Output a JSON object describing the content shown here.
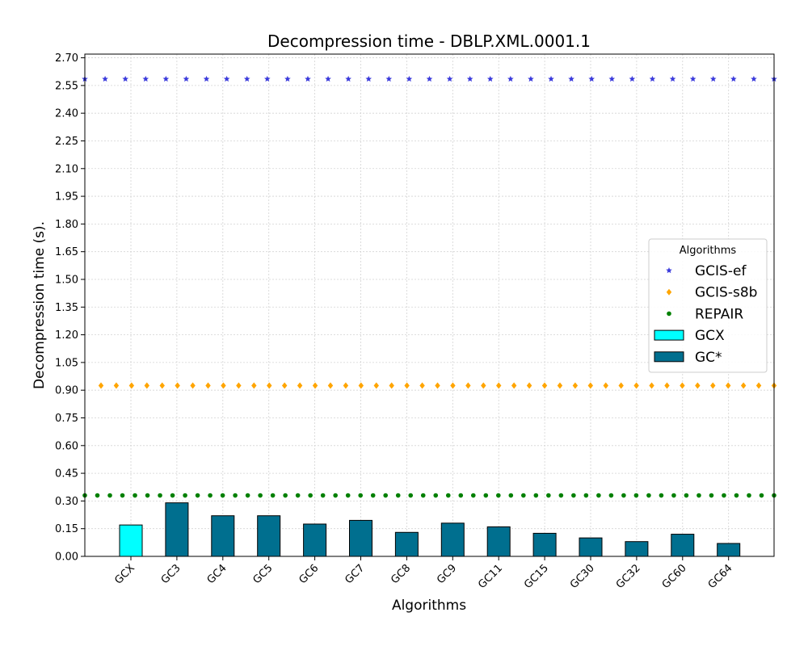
{
  "chart_data": {
    "type": "bar",
    "title": "Decompression time -  DBLP.XML.0001.1",
    "xlabel": "Algorithms",
    "ylabel": "Decompression time (s).",
    "ylim": [
      0,
      2.72
    ],
    "yticks": [
      "0.00",
      "0.15",
      "0.30",
      "0.45",
      "0.60",
      "0.75",
      "0.90",
      "1.05",
      "1.20",
      "1.35",
      "1.50",
      "1.65",
      "1.80",
      "1.95",
      "2.10",
      "2.25",
      "2.40",
      "2.55",
      "2.70"
    ],
    "grid": true,
    "categories": [
      "GCX",
      "GC3",
      "GC4",
      "GC5",
      "GC6",
      "GC7",
      "GC8",
      "GC9",
      "GC11",
      "GC15",
      "GC30",
      "GC32",
      "GC60",
      "GC64"
    ],
    "series": [
      {
        "name": "GCX",
        "kind": "bar",
        "color": "#00ffff",
        "values": [
          0.17,
          null,
          null,
          null,
          null,
          null,
          null,
          null,
          null,
          null,
          null,
          null,
          null,
          null
        ]
      },
      {
        "name": "GC*",
        "kind": "bar",
        "color": "#006f8f",
        "values": [
          null,
          0.29,
          0.22,
          0.22,
          0.175,
          0.195,
          0.13,
          0.18,
          0.16,
          0.125,
          0.1,
          0.08,
          0.12,
          0.07
        ]
      },
      {
        "name": "GCIS-ef",
        "kind": "reference-line",
        "marker": "star",
        "color": "#3b3bdc",
        "value": 2.585
      },
      {
        "name": "GCIS-s8b",
        "kind": "reference-line",
        "marker": "diamond",
        "color": "#ffa500",
        "value": 0.925
      },
      {
        "name": "REPAIR",
        "kind": "reference-line",
        "marker": "circle",
        "color": "#008000",
        "value": 0.33
      }
    ],
    "legend": {
      "title": "Algorithms",
      "placement": "center-right",
      "entries": [
        {
          "label": "GCIS-ef",
          "marker": "star",
          "color": "#3b3bdc"
        },
        {
          "label": "GCIS-s8b",
          "marker": "diamond",
          "color": "#ffa500"
        },
        {
          "label": "REPAIR",
          "marker": "circle",
          "color": "#008000"
        },
        {
          "label": "GCX",
          "marker": "box",
          "color": "#00ffff"
        },
        {
          "label": "GC*",
          "marker": "box",
          "color": "#006f8f"
        }
      ]
    }
  }
}
